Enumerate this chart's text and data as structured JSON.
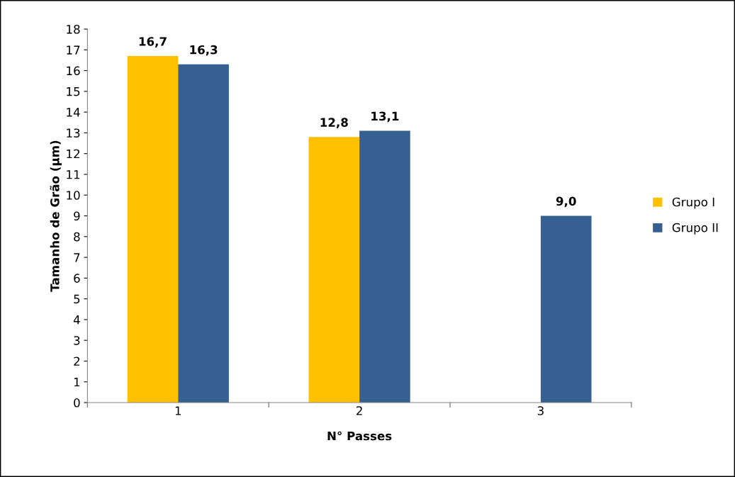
{
  "chart_data": {
    "type": "bar",
    "xlabel": "N° Passes",
    "ylabel": "Tamanho de Grão (µm)",
    "categories": [
      "1",
      "2",
      "3"
    ],
    "series": [
      {
        "name": "Grupo I",
        "color": "#ffc000",
        "values": [
          16.7,
          12.8,
          null
        ],
        "value_labels": [
          "16,7",
          "12,8",
          null
        ]
      },
      {
        "name": "Grupo II",
        "color": "#376092",
        "values": [
          16.3,
          13.1,
          9.0
        ],
        "value_labels": [
          "16,3",
          "13,1",
          "9,0"
        ]
      }
    ],
    "ylim": [
      0,
      18
    ],
    "yticks": [
      0,
      1,
      2,
      3,
      4,
      5,
      6,
      7,
      8,
      9,
      10,
      11,
      12,
      13,
      14,
      15,
      16,
      17,
      18
    ],
    "grid": false,
    "legend": "right"
  }
}
